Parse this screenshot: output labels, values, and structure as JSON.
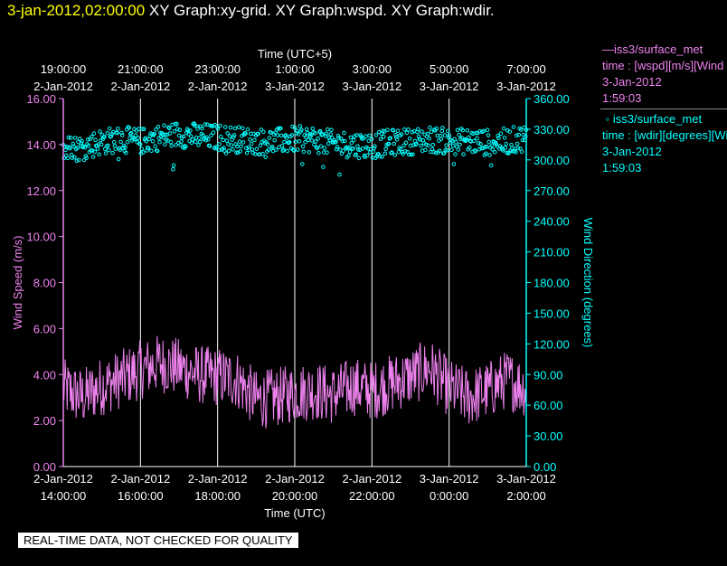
{
  "header": {
    "timestamp": "3-jan-2012,02:00:00",
    "title": "XY Graph:xy-grid.  XY Graph:wspd.  XY Graph:wdir."
  },
  "legend": {
    "speed": {
      "name": "iss3/surface_met",
      "line2": "time : [wspd][m/s][Wind",
      "date": "3-Jan-2012",
      "time": "1:59:03"
    },
    "direction": {
      "name": "iss3/surface_met",
      "line2": "time : [wdir][degrees][Wi",
      "date": "3-Jan-2012",
      "time": "1:59:03"
    }
  },
  "footer": "REAL-TIME DATA, NOT CHECKED FOR QUALITY",
  "colors": {
    "speed": "#ee82ee",
    "direction": "#00ffff",
    "timestamp": "#ffff00",
    "grid": "#ffffff"
  },
  "chart_data": {
    "type": "line",
    "top_axis_title": "Time (UTC+5)",
    "xlabel": "Time (UTC)",
    "ylabel_left": "Wind Speed (m/s)",
    "ylabel_right": "Wind Direction (degrees)",
    "x_range_utc": [
      "2-Jan-2012 14:00",
      "3-Jan-2012 02:00"
    ],
    "bottom_ticks": [
      {
        "date": "2-Jan-2012",
        "time": "14:00:00"
      },
      {
        "date": "2-Jan-2012",
        "time": "16:00:00"
      },
      {
        "date": "2-Jan-2012",
        "time": "18:00:00"
      },
      {
        "date": "2-Jan-2012",
        "time": "20:00:00"
      },
      {
        "date": "2-Jan-2012",
        "time": "22:00:00"
      },
      {
        "date": "3-Jan-2012",
        "time": "0:00:00"
      },
      {
        "date": "3-Jan-2012",
        "time": "2:00:00"
      }
    ],
    "top_ticks": [
      {
        "date": "2-Jan-2012",
        "time": "19:00:00"
      },
      {
        "date": "2-Jan-2012",
        "time": "21:00:00"
      },
      {
        "date": "2-Jan-2012",
        "time": "23:00:00"
      },
      {
        "date": "3-Jan-2012",
        "time": "1:00:00"
      },
      {
        "date": "3-Jan-2012",
        "time": "3:00:00"
      },
      {
        "date": "3-Jan-2012",
        "time": "5:00:00"
      },
      {
        "date": "3-Jan-2012",
        "time": "7:00:00"
      }
    ],
    "y_left": {
      "range": [
        0,
        16
      ],
      "ticks": [
        "0.00",
        "2.00",
        "4.00",
        "6.00",
        "8.00",
        "10.00",
        "12.00",
        "14.00",
        "16.00"
      ]
    },
    "y_right": {
      "range": [
        0,
        360
      ],
      "ticks": [
        "0.00",
        "30.00",
        "60.00",
        "90.00",
        "120.00",
        "150.00",
        "180.00",
        "210.00",
        "240.00",
        "270.00",
        "300.00",
        "330.00",
        "360.00"
      ]
    },
    "grid": "vertical",
    "series": [
      {
        "name": "wspd",
        "style": "line",
        "hours_since_start": [
          0,
          0.5,
          1,
          1.5,
          2,
          2.5,
          3,
          3.5,
          4,
          4.5,
          5,
          5.5,
          6,
          6.5,
          7,
          7.5,
          8,
          8.5,
          9,
          9.5,
          10,
          10.5,
          11,
          11.5,
          12
        ],
        "values": [
          3.4,
          3.0,
          3.5,
          3.8,
          4.2,
          4.5,
          4.3,
          4.0,
          3.9,
          3.8,
          2.9,
          3.0,
          3.2,
          3.3,
          3.1,
          3.5,
          3.3,
          3.6,
          3.9,
          4.3,
          3.4,
          3.0,
          3.3,
          3.8,
          3.4
        ]
      },
      {
        "name": "wdir",
        "style": "markers",
        "hours_since_start": [
          0,
          0.5,
          1,
          1.5,
          2,
          2.5,
          3,
          3.5,
          4,
          4.5,
          5,
          5.5,
          6,
          6.5,
          7,
          7.5,
          8,
          8.5,
          9,
          9.5,
          10,
          10.5,
          11,
          11.5,
          12
        ],
        "values": [
          310,
          312,
          318,
          320,
          318,
          322,
          325,
          323,
          322,
          320,
          318,
          318,
          320,
          320,
          316,
          315,
          314,
          317,
          318,
          320,
          318,
          318,
          317,
          318,
          322
        ]
      }
    ]
  }
}
